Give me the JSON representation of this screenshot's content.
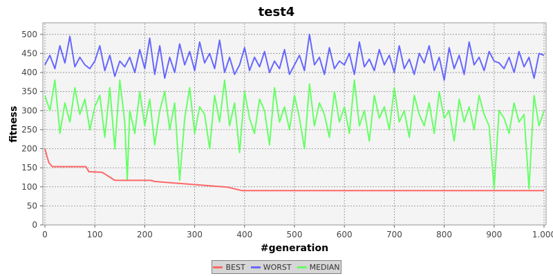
{
  "chart_data": {
    "type": "line",
    "title": "test4",
    "xlabel": "#generation",
    "ylabel": "fitness",
    "xlim": [
      0,
      1000
    ],
    "ylim": [
      0,
      525
    ],
    "xticks": [
      0,
      100,
      200,
      300,
      400,
      500,
      600,
      700,
      800,
      900,
      1000
    ],
    "xtick_labels": [
      "0",
      "100",
      "200",
      "300",
      "400",
      "500",
      "600",
      "700",
      "800",
      "900",
      "1.000"
    ],
    "yticks": [
      0,
      50,
      100,
      150,
      200,
      250,
      300,
      350,
      400,
      450,
      500
    ],
    "ytick_labels": [
      "0",
      "50",
      "100",
      "150",
      "200",
      "250",
      "300",
      "350",
      "400",
      "450",
      "500"
    ],
    "grid": true,
    "legend_position": "bottom-center",
    "series": [
      {
        "name": "BEST",
        "color": "#ff6666",
        "x": [
          0,
          4,
          8,
          15,
          82,
          88,
          115,
          140,
          157,
          212,
          220,
          366,
          395,
          1000
        ],
        "y": [
          200,
          180,
          163,
          153,
          153,
          140,
          138,
          117,
          117,
          117,
          114,
          99,
          90,
          90
        ]
      },
      {
        "name": "WORST",
        "color": "#6666ff",
        "x": [
          0,
          10,
          20,
          30,
          40,
          50,
          60,
          70,
          80,
          90,
          100,
          110,
          120,
          130,
          140,
          150,
          160,
          170,
          180,
          190,
          200,
          210,
          220,
          230,
          240,
          250,
          260,
          270,
          280,
          290,
          300,
          310,
          320,
          330,
          340,
          350,
          360,
          370,
          380,
          390,
          400,
          410,
          420,
          430,
          440,
          450,
          460,
          470,
          480,
          490,
          500,
          510,
          520,
          530,
          540,
          550,
          560,
          570,
          580,
          590,
          600,
          610,
          620,
          630,
          640,
          650,
          660,
          670,
          680,
          690,
          700,
          710,
          720,
          730,
          740,
          750,
          760,
          770,
          780,
          790,
          800,
          810,
          820,
          830,
          840,
          850,
          860,
          870,
          880,
          890,
          900,
          910,
          920,
          930,
          940,
          950,
          960,
          970,
          980,
          990,
          1000
        ],
        "y": [
          420,
          445,
          410,
          470,
          425,
          495,
          415,
          440,
          420,
          410,
          430,
          470,
          405,
          445,
          390,
          430,
          415,
          440,
          400,
          460,
          410,
          490,
          395,
          470,
          385,
          440,
          400,
          475,
          420,
          455,
          405,
          480,
          425,
          450,
          410,
          485,
          400,
          440,
          395,
          420,
          465,
          405,
          440,
          415,
          455,
          400,
          430,
          410,
          460,
          395,
          420,
          445,
          405,
          500,
          420,
          440,
          395,
          465,
          410,
          430,
          420,
          450,
          395,
          480,
          415,
          435,
          405,
          460,
          420,
          445,
          400,
          470,
          410,
          435,
          395,
          450,
          425,
          470,
          405,
          440,
          380,
          465,
          410,
          445,
          395,
          480,
          420,
          440,
          405,
          455,
          430,
          425,
          410,
          440,
          400,
          455,
          415,
          440,
          385,
          450,
          445
        ]
      },
      {
        "name": "MEDIAN",
        "color": "#66ff66",
        "x": [
          0,
          10,
          20,
          30,
          40,
          50,
          60,
          70,
          80,
          90,
          100,
          110,
          120,
          130,
          140,
          150,
          160,
          165,
          170,
          180,
          190,
          200,
          210,
          220,
          230,
          240,
          250,
          260,
          270,
          280,
          290,
          300,
          310,
          320,
          330,
          340,
          350,
          360,
          370,
          380,
          390,
          400,
          410,
          420,
          430,
          440,
          450,
          460,
          470,
          480,
          490,
          500,
          510,
          520,
          530,
          540,
          550,
          560,
          570,
          580,
          590,
          600,
          610,
          620,
          630,
          640,
          650,
          660,
          670,
          680,
          690,
          700,
          710,
          720,
          730,
          740,
          750,
          760,
          770,
          780,
          790,
          800,
          810,
          820,
          830,
          840,
          850,
          860,
          870,
          880,
          890,
          900,
          910,
          920,
          930,
          940,
          950,
          960,
          970,
          980,
          990,
          1000
        ],
        "y": [
          340,
          300,
          380,
          240,
          320,
          270,
          360,
          290,
          330,
          250,
          310,
          340,
          230,
          360,
          200,
          380,
          270,
          117,
          300,
          240,
          350,
          260,
          330,
          210,
          300,
          350,
          250,
          320,
          117,
          280,
          360,
          240,
          310,
          290,
          200,
          340,
          270,
          380,
          260,
          320,
          190,
          350,
          280,
          240,
          330,
          300,
          210,
          360,
          270,
          310,
          250,
          340,
          280,
          200,
          370,
          260,
          320,
          290,
          230,
          350,
          270,
          310,
          240,
          380,
          260,
          300,
          220,
          340,
          280,
          310,
          250,
          360,
          270,
          300,
          230,
          340,
          290,
          260,
          320,
          240,
          350,
          280,
          300,
          220,
          330,
          270,
          310,
          250,
          340,
          290,
          260,
          95,
          300,
          280,
          240,
          320,
          270,
          290,
          95,
          340,
          260,
          300
        ]
      }
    ]
  }
}
